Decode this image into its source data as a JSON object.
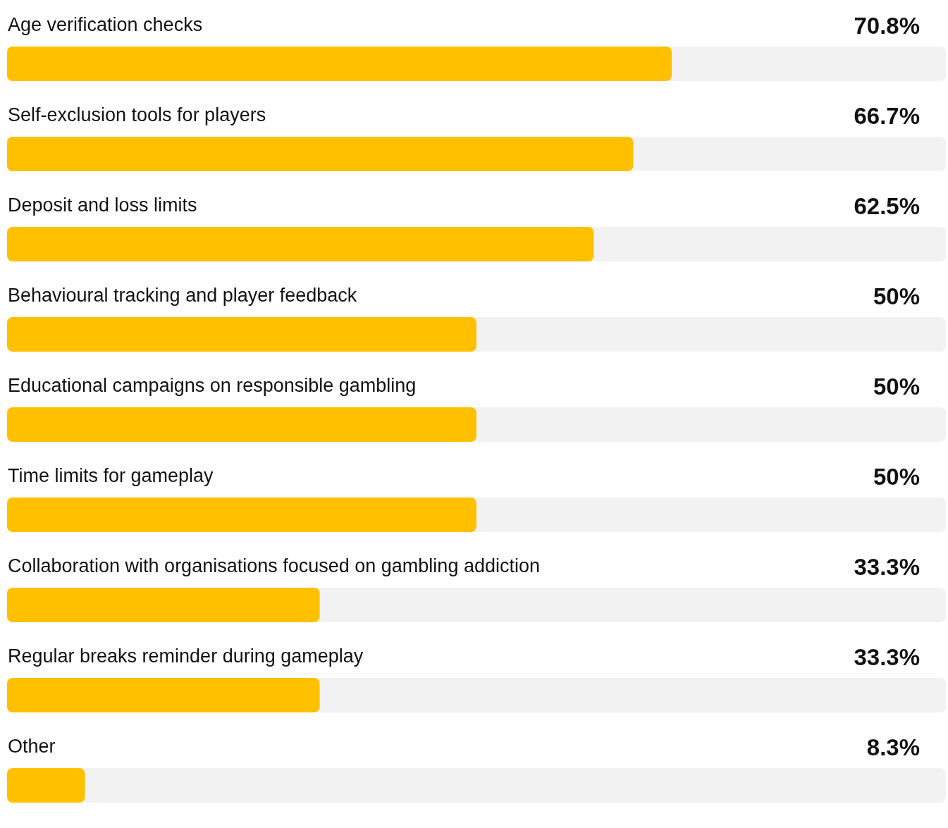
{
  "chart_data": {
    "type": "bar",
    "orientation": "horizontal",
    "categories": [
      "Age verification checks",
      "Self-exclusion tools for players",
      "Deposit and loss limits",
      "Behavioural tracking and player feedback",
      "Educational campaigns on responsible gambling",
      "Time limits for gameplay",
      "Collaboration with organisations focused on gambling addiction",
      "Regular breaks reminder during gameplay",
      "Other"
    ],
    "values": [
      70.8,
      66.7,
      62.5,
      50,
      50,
      50,
      33.3,
      33.3,
      8.3
    ],
    "value_labels": [
      "70.8%",
      "66.7%",
      "62.5%",
      "50%",
      "50%",
      "50%",
      "33.3%",
      "33.3%",
      "8.3%"
    ],
    "color": "#ffc000",
    "xlim": [
      0,
      100
    ],
    "tick_labels": false,
    "grid": false,
    "legend": false
  }
}
